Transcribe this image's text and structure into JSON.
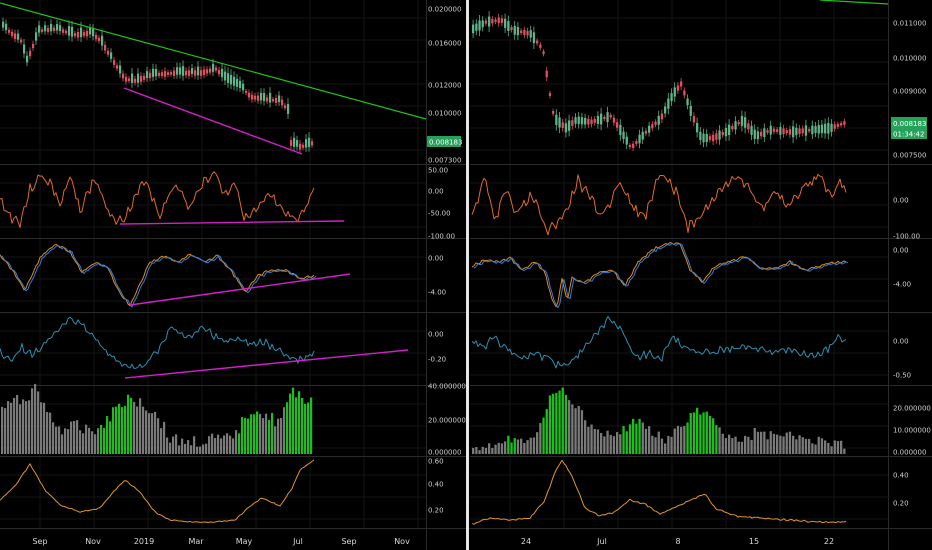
{
  "colors": {
    "background": "#000000",
    "grid": "#141414",
    "separator": "#2a2a2a",
    "divider": "#e6e6e6",
    "candle_up": "#5fb58a",
    "candle_down": "#e0505e",
    "trend_green": "#22c21a",
    "trend_magenta": "#d020c8",
    "rsi_orange": "#e06a2a",
    "macd_blue": "#2f7fd6",
    "macd_orange": "#e08a22",
    "cci_cyan": "#2d8eb0",
    "vol_gray": "#7a7a7a",
    "vol_green": "#1fbe1f",
    "osc_orange": "#e0962a",
    "badge_green": "#26a15a"
  },
  "chart_data": [
    {
      "name": "left",
      "x_labels": [
        "Sep",
        "Nov",
        "2019",
        "Mar",
        "May",
        "Jul",
        "Sep",
        "Nov"
      ],
      "panes": [
        {
          "type": "candlestick",
          "y_ticks": [
            "0.020000",
            "0.016000",
            "0.012000",
            "0.010000",
            "0.008500",
            "0.007300"
          ],
          "price_badge": "0.008183"
        },
        {
          "type": "line",
          "y_ticks": [
            "50.00",
            "0.00",
            "-50.00",
            "-100.00"
          ]
        },
        {
          "type": "line",
          "y_ticks": [
            "0.00",
            "-4.00"
          ]
        },
        {
          "type": "line",
          "y_ticks": [
            "0.00",
            "-0.20"
          ]
        },
        {
          "type": "bar",
          "y_ticks": [
            "40.000000",
            "20.000000",
            "0.000000"
          ]
        },
        {
          "type": "line",
          "y_ticks": [
            "0.60",
            "0.40",
            "0.20"
          ]
        }
      ]
    },
    {
      "name": "right",
      "x_labels": [
        "24",
        "Jul",
        "8",
        "15",
        "22"
      ],
      "panes": [
        {
          "type": "candlestick",
          "y_ticks": [
            "0.011000",
            "0.010000",
            "0.009000",
            "0.008000",
            "0.007500"
          ],
          "price_badge": "0.008183",
          "time_badge": "01:34:42"
        },
        {
          "type": "line",
          "y_ticks": [
            "0.00",
            "-100.00"
          ]
        },
        {
          "type": "line",
          "y_ticks": [
            "0.00",
            "-4.00"
          ]
        },
        {
          "type": "line",
          "y_ticks": [
            "0.00",
            "-0.50"
          ]
        },
        {
          "type": "bar",
          "y_ticks": [
            "20.000000",
            "10.000000",
            "0.000000"
          ]
        },
        {
          "type": "line",
          "y_ticks": [
            "0.40",
            "0.20"
          ]
        }
      ]
    }
  ]
}
